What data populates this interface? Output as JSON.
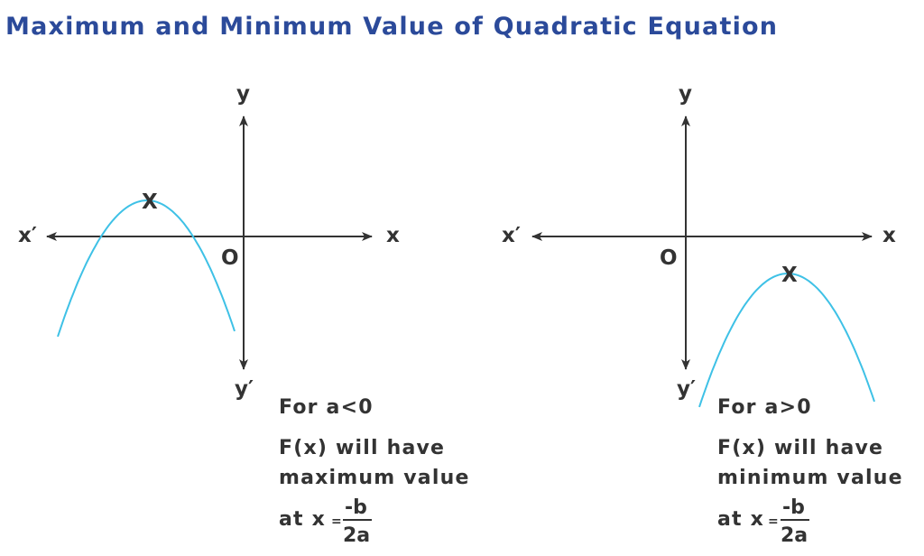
{
  "title": "Maximum and Minimum Value of Quadratic Equation",
  "colors": {
    "title": "#2b4a9a",
    "curve": "#3ec1e6",
    "axis": "#333333"
  },
  "left_panel": {
    "axis_labels": {
      "y": "y",
      "y_neg": "y′",
      "x": "x",
      "x_neg": "x′",
      "origin": "O"
    },
    "vertex_marker": "X",
    "condition": "For a<0",
    "line1": "F(x) will have",
    "line2": "maximum value",
    "at_x": "at x",
    "equals": "=",
    "numerator": "-b",
    "denominator": "2a"
  },
  "right_panel": {
    "axis_labels": {
      "y": "y",
      "y_neg": "y′",
      "x": "x",
      "x_neg": "x′",
      "origin": "O"
    },
    "vertex_marker": "X",
    "condition": "For a>0",
    "line1": "F(x) will have",
    "line2": "minimum value",
    "at_x": "at x",
    "equals": "=",
    "numerator": "-b",
    "denominator": "2a"
  }
}
